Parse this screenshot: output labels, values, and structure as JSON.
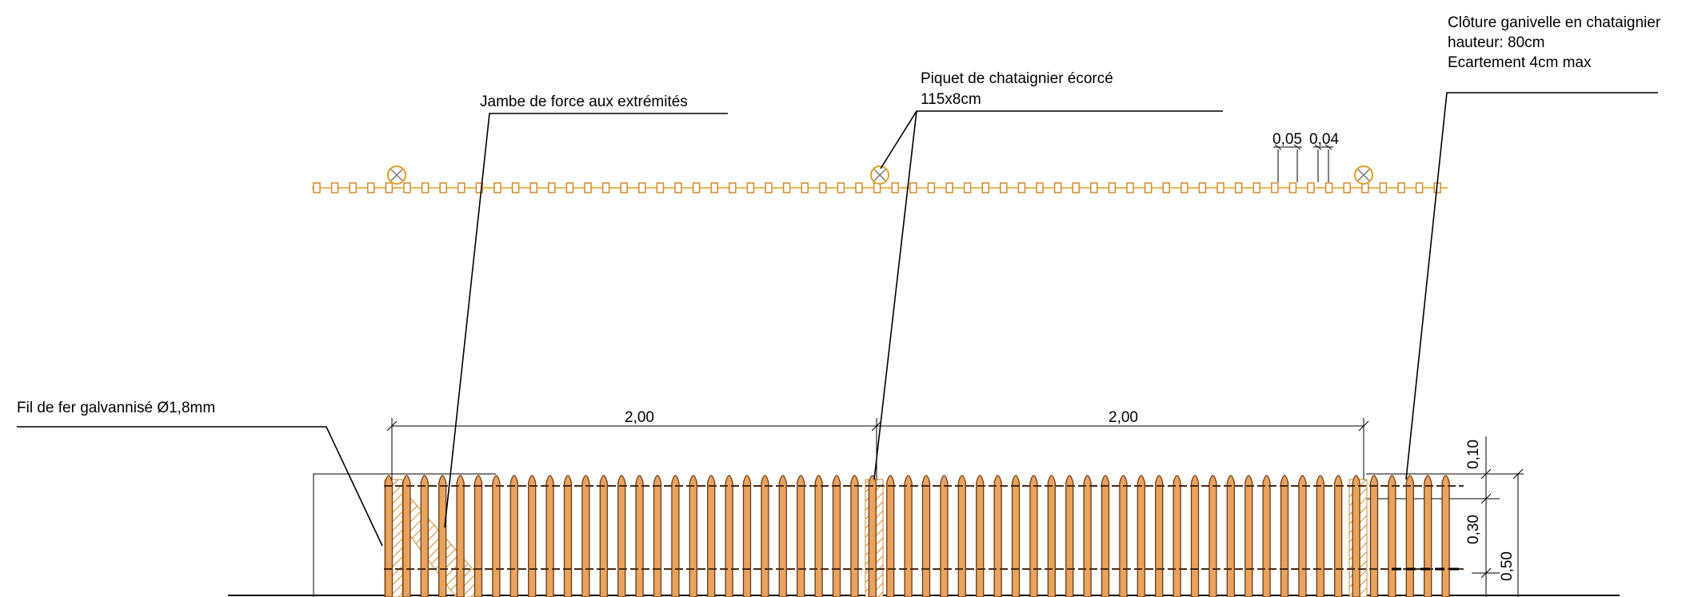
{
  "labels": {
    "brace": "Jambe de force aux extrémités",
    "post_title": "Piquet de chataignier écorcé",
    "post_size": "115x8cm",
    "fence_title": "Clôture ganivelle en chataignier",
    "fence_height": "hauteur: 80cm",
    "fence_spacing": "Ecartement 4cm max",
    "wire": "Fil de fer galvannisé Ø1,8mm"
  },
  "dimensions": {
    "span_left": "2,00",
    "span_right": "2,00",
    "slat_width": "0,05",
    "gap_width": "0,04",
    "top_height": "0,10",
    "mid_height": "0,30",
    "total_height": "0,50"
  },
  "colors": {
    "picket_fill": "#e9a35e",
    "picket_stroke": "#6b3a12",
    "plan_stroke": "#e0a020",
    "hatch": "#d08a2c"
  }
}
